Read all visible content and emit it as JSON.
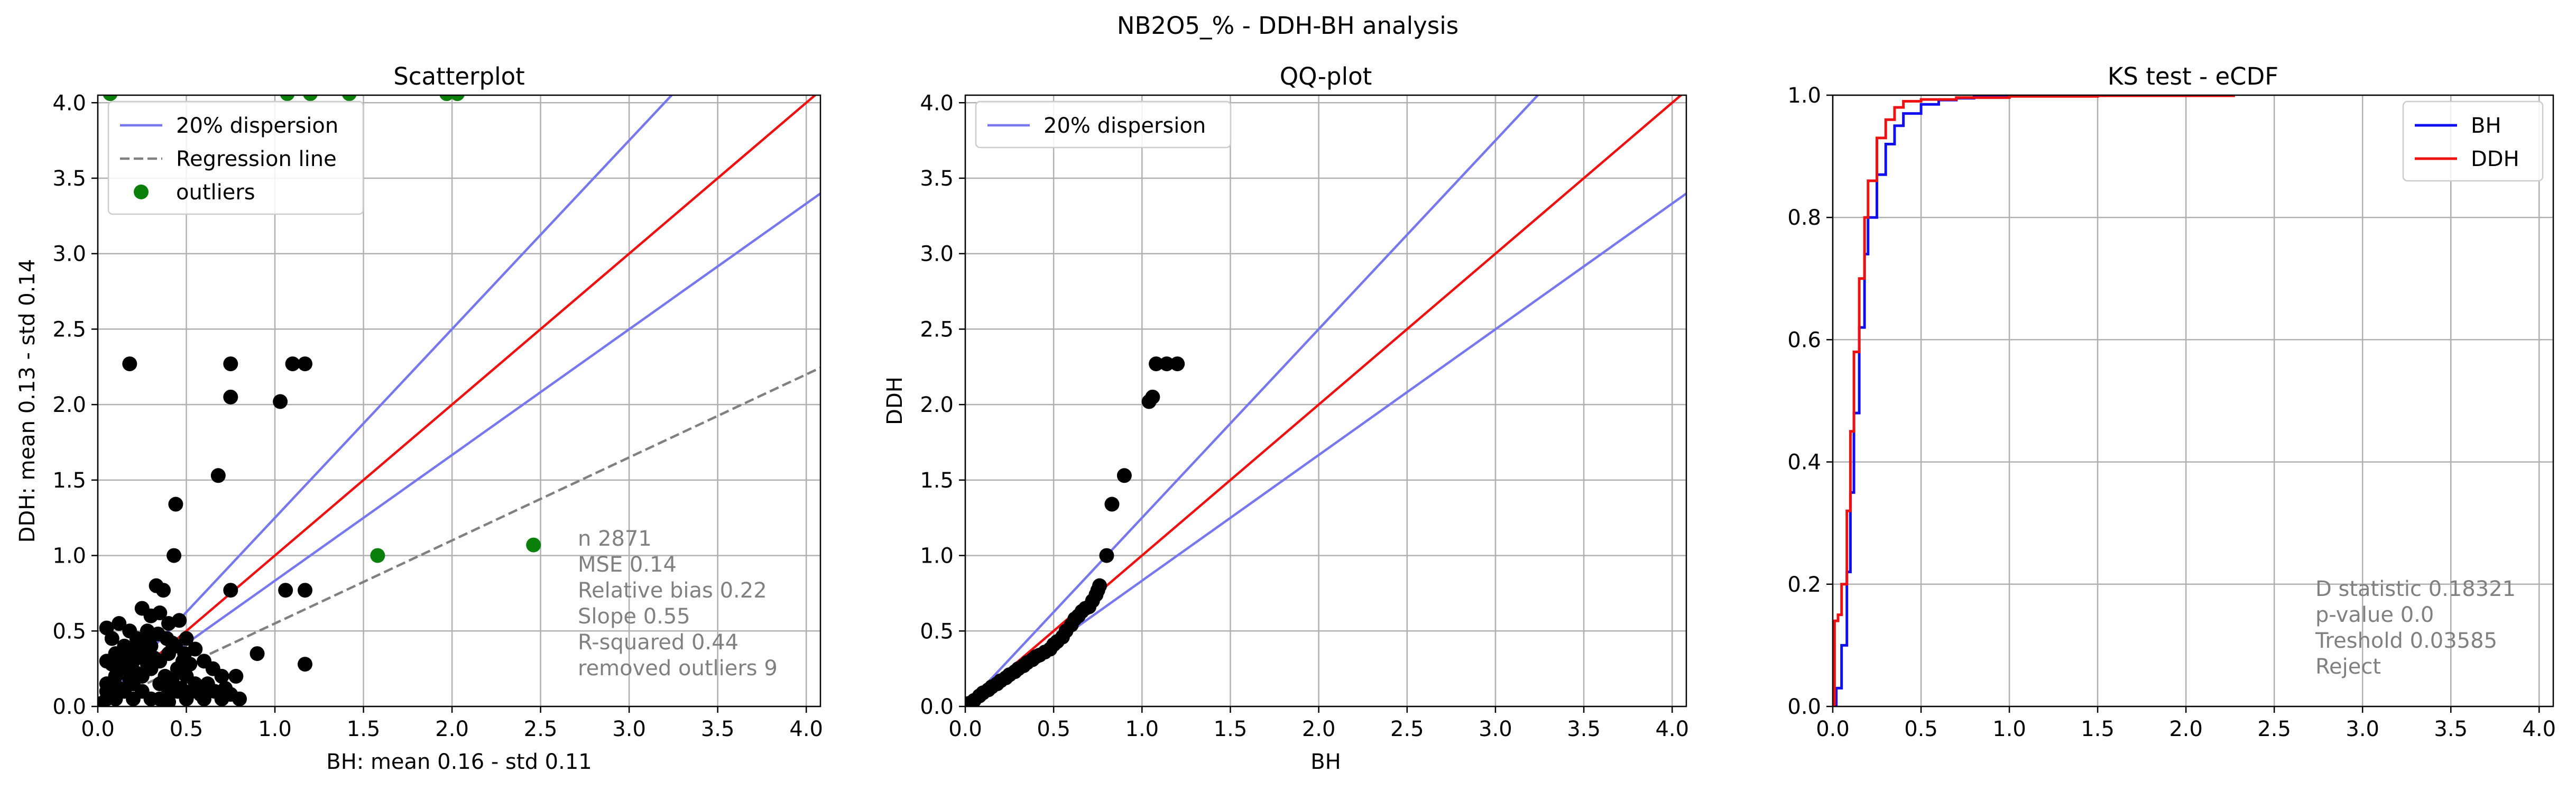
{
  "suptitle": "NB2O5_% - DDH-BH analysis",
  "colors": {
    "dispersion": "#7777ee",
    "identity": "#ee1111",
    "regression": "#808080",
    "outlier": "#0a800a",
    "points": "#000000",
    "bh": "#1010ee",
    "ddh": "#ee1111",
    "grid": "#b0b0b0",
    "stats_text": "#808080"
  },
  "chart_data": [
    {
      "type": "scatter",
      "title": "Scatterplot",
      "xlabel": "BH: mean 0.16 - std 0.11",
      "ylabel": "DDH: mean 0.13 - std 0.14",
      "xlim": [
        0,
        4.08
      ],
      "ylim": [
        0,
        4.05
      ],
      "xticks": [
        "0.0",
        "0.5",
        "1.0",
        "1.5",
        "2.0",
        "2.5",
        "3.0",
        "3.5",
        "4.0"
      ],
      "yticks": [
        "0.0",
        "0.5",
        "1.0",
        "1.5",
        "2.0",
        "2.5",
        "3.0",
        "3.5",
        "4.0"
      ],
      "grid": true,
      "legend": {
        "position": "top-left",
        "entries": [
          "20% dispersion",
          "Regression line",
          "outliers"
        ]
      },
      "lines": {
        "identity_slope": 1.0,
        "dispersion_slopes": [
          1.25,
          0.833
        ],
        "regression": {
          "slope": 0.55,
          "intercept": 0.0
        }
      },
      "points": [
        [
          0.18,
          2.27
        ],
        [
          0.75,
          2.27
        ],
        [
          1.1,
          2.27
        ],
        [
          1.17,
          2.27
        ],
        [
          0.75,
          2.05
        ],
        [
          1.03,
          2.02
        ],
        [
          0.68,
          1.53
        ],
        [
          0.44,
          1.34
        ],
        [
          0.43,
          1.0
        ],
        [
          0.75,
          0.77
        ],
        [
          1.06,
          0.77
        ],
        [
          1.17,
          0.77
        ],
        [
          0.33,
          0.8
        ],
        [
          0.37,
          0.77
        ],
        [
          0.9,
          0.35
        ],
        [
          1.17,
          0.28
        ],
        [
          0.78,
          0.2
        ],
        [
          0.05,
          0.52
        ],
        [
          0.12,
          0.55
        ],
        [
          0.18,
          0.5
        ],
        [
          0.25,
          0.65
        ],
        [
          0.3,
          0.6
        ],
        [
          0.35,
          0.62
        ],
        [
          0.4,
          0.55
        ],
        [
          0.46,
          0.57
        ],
        [
          0.5,
          0.45
        ],
        [
          0.55,
          0.38
        ],
        [
          0.6,
          0.3
        ],
        [
          0.65,
          0.25
        ],
        [
          0.7,
          0.2
        ],
        [
          0.72,
          0.12
        ],
        [
          0.75,
          0.08
        ],
        [
          0.8,
          0.05
        ],
        [
          0.6,
          0.05
        ],
        [
          0.05,
          0.3
        ],
        [
          0.1,
          0.35
        ],
        [
          0.15,
          0.4
        ],
        [
          0.2,
          0.3
        ],
        [
          0.25,
          0.35
        ],
        [
          0.3,
          0.4
        ],
        [
          0.35,
          0.3
        ],
        [
          0.4,
          0.35
        ],
        [
          0.45,
          0.25
        ],
        [
          0.5,
          0.2
        ],
        [
          0.55,
          0.15
        ],
        [
          0.05,
          0.15
        ],
        [
          0.1,
          0.2
        ],
        [
          0.15,
          0.25
        ],
        [
          0.2,
          0.15
        ],
        [
          0.25,
          0.2
        ],
        [
          0.3,
          0.25
        ],
        [
          0.35,
          0.15
        ],
        [
          0.4,
          0.1
        ],
        [
          0.45,
          0.1
        ],
        [
          0.5,
          0.05
        ],
        [
          0.1,
          0.05
        ],
        [
          0.2,
          0.05
        ],
        [
          0.3,
          0.05
        ],
        [
          0.4,
          0.03
        ],
        [
          0.05,
          0.05
        ],
        [
          0.15,
          0.1
        ],
        [
          0.25,
          0.1
        ],
        [
          0.35,
          0.05
        ],
        [
          0.08,
          0.45
        ],
        [
          0.22,
          0.45
        ],
        [
          0.28,
          0.5
        ],
        [
          0.42,
          0.42
        ],
        [
          0.48,
          0.3
        ],
        [
          0.52,
          0.28
        ],
        [
          0.02,
          0.02
        ],
        [
          0.05,
          0.1
        ],
        [
          0.12,
          0.12
        ],
        [
          0.18,
          0.18
        ],
        [
          0.22,
          0.22
        ],
        [
          0.28,
          0.28
        ],
        [
          0.32,
          0.32
        ],
        [
          0.38,
          0.2
        ],
        [
          0.42,
          0.18
        ],
        [
          0.47,
          0.12
        ],
        [
          0.53,
          0.1
        ],
        [
          0.58,
          0.08
        ],
        [
          0.62,
          0.15
        ],
        [
          0.66,
          0.1
        ],
        [
          0.7,
          0.05
        ],
        [
          0.08,
          0.28
        ],
        [
          0.14,
          0.32
        ],
        [
          0.19,
          0.38
        ],
        [
          0.24,
          0.42
        ],
        [
          0.29,
          0.45
        ],
        [
          0.34,
          0.48
        ],
        [
          0.39,
          0.45
        ],
        [
          0.44,
          0.4
        ],
        [
          0.49,
          0.35
        ]
      ],
      "outliers": [
        [
          0.07,
          4.06
        ],
        [
          1.07,
          4.06
        ],
        [
          1.2,
          4.06
        ],
        [
          1.42,
          4.06
        ],
        [
          1.97,
          4.06
        ],
        [
          2.03,
          4.06
        ],
        [
          1.58,
          1.0
        ],
        [
          2.46,
          1.07
        ]
      ],
      "stats": [
        "n 2871",
        "MSE 0.14",
        "Relative bias 0.22",
        "Slope 0.55",
        "R-squared 0.44",
        "removed outliers 9"
      ]
    },
    {
      "type": "scatter",
      "title": "QQ-plot",
      "xlabel": "BH",
      "ylabel": "DDH",
      "xlim": [
        0,
        4.08
      ],
      "ylim": [
        0,
        4.05
      ],
      "xticks": [
        "0.0",
        "0.5",
        "1.0",
        "1.5",
        "2.0",
        "2.5",
        "3.0",
        "3.5",
        "4.0"
      ],
      "yticks": [
        "0.0",
        "0.5",
        "1.0",
        "1.5",
        "2.0",
        "2.5",
        "3.0",
        "3.5",
        "4.0"
      ],
      "grid": true,
      "legend": {
        "position": "top-left",
        "entries": [
          "20% dispersion"
        ]
      },
      "lines": {
        "identity_slope": 1.0,
        "dispersion_slopes": [
          1.25,
          0.833
        ]
      },
      "points": [
        [
          0.02,
          0.02
        ],
        [
          0.05,
          0.04
        ],
        [
          0.08,
          0.07
        ],
        [
          0.1,
          0.09
        ],
        [
          0.13,
          0.11
        ],
        [
          0.15,
          0.13
        ],
        [
          0.18,
          0.15
        ],
        [
          0.2,
          0.17
        ],
        [
          0.23,
          0.19
        ],
        [
          0.25,
          0.21
        ],
        [
          0.28,
          0.23
        ],
        [
          0.3,
          0.25
        ],
        [
          0.33,
          0.27
        ],
        [
          0.35,
          0.29
        ],
        [
          0.38,
          0.31
        ],
        [
          0.4,
          0.33
        ],
        [
          0.42,
          0.34
        ],
        [
          0.45,
          0.36
        ],
        [
          0.48,
          0.38
        ],
        [
          0.5,
          0.41
        ],
        [
          0.52,
          0.43
        ],
        [
          0.55,
          0.46
        ],
        [
          0.57,
          0.5
        ],
        [
          0.6,
          0.54
        ],
        [
          0.62,
          0.58
        ],
        [
          0.64,
          0.6
        ],
        [
          0.66,
          0.63
        ],
        [
          0.68,
          0.65
        ],
        [
          0.7,
          0.66
        ],
        [
          0.72,
          0.7
        ],
        [
          0.74,
          0.74
        ],
        [
          0.75,
          0.77
        ],
        [
          0.76,
          0.8
        ],
        [
          0.8,
          1.0
        ],
        [
          0.83,
          1.34
        ],
        [
          0.9,
          1.53
        ],
        [
          1.04,
          2.02
        ],
        [
          1.06,
          2.05
        ],
        [
          1.08,
          2.27
        ],
        [
          1.14,
          2.27
        ],
        [
          1.2,
          2.27
        ]
      ]
    },
    {
      "type": "line",
      "title": "KS test - eCDF",
      "xlabel": "",
      "ylabel": "",
      "xlim": [
        0,
        4.08
      ],
      "ylim": [
        0,
        1.0
      ],
      "xticks": [
        "0.0",
        "0.5",
        "1.0",
        "1.5",
        "2.0",
        "2.5",
        "3.0",
        "3.5",
        "4.0"
      ],
      "yticks": [
        "0.0",
        "0.2",
        "0.4",
        "0.6",
        "0.8",
        "1.0"
      ],
      "grid": true,
      "legend": {
        "position": "top-right",
        "entries": [
          "BH",
          "DDH"
        ]
      },
      "series": [
        {
          "name": "BH",
          "x": [
            0.0,
            0.02,
            0.05,
            0.08,
            0.1,
            0.12,
            0.15,
            0.18,
            0.2,
            0.25,
            0.3,
            0.35,
            0.4,
            0.5,
            0.6,
            0.7,
            0.8,
            1.0,
            1.2,
            1.4
          ],
          "y": [
            0.0,
            0.03,
            0.1,
            0.22,
            0.35,
            0.48,
            0.62,
            0.74,
            0.8,
            0.87,
            0.92,
            0.95,
            0.97,
            0.985,
            0.992,
            0.995,
            0.998,
            0.999,
            1.0,
            1.0
          ]
        },
        {
          "name": "DDH",
          "x": [
            0.0,
            0.01,
            0.03,
            0.05,
            0.08,
            0.1,
            0.12,
            0.15,
            0.18,
            0.2,
            0.25,
            0.3,
            0.35,
            0.4,
            0.5,
            0.7,
            1.0,
            1.5,
            2.0,
            2.27
          ],
          "y": [
            0.0,
            0.14,
            0.15,
            0.2,
            0.32,
            0.45,
            0.58,
            0.7,
            0.8,
            0.86,
            0.93,
            0.96,
            0.98,
            0.99,
            0.993,
            0.996,
            0.998,
            0.999,
            0.999,
            1.0
          ]
        }
      ],
      "stats": [
        "D statistic 0.18321",
        "p-value 0.0",
        "Treshold  0.03585",
        "Reject"
      ]
    }
  ]
}
